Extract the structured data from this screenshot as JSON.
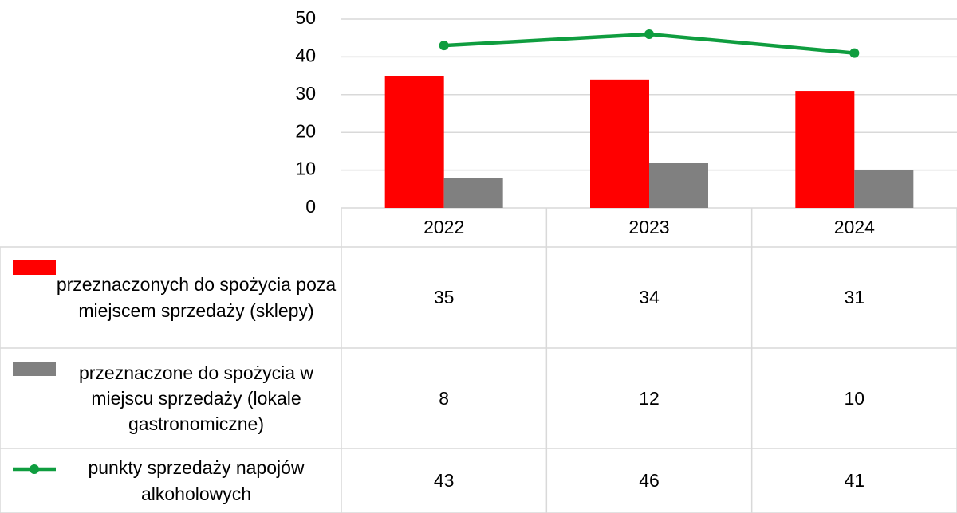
{
  "chart_data": {
    "type": "bar",
    "categories": [
      "2022",
      "2023",
      "2024"
    ],
    "series": [
      {
        "name": "przeznaczonych do spożycia poza miejscem sprzedaży (sklepy)",
        "type": "bar",
        "color": "#ff0000",
        "values": [
          35,
          34,
          31
        ]
      },
      {
        "name": "przeznaczone do spożycia w miejscu sprzedaży (lokale gastronomiczne)",
        "type": "bar",
        "color": "#808080",
        "values": [
          8,
          12,
          10
        ]
      },
      {
        "name": "punkty sprzedaży napojów alkoholowych",
        "type": "line",
        "color": "#0f9d3f",
        "values": [
          43,
          46,
          41
        ]
      }
    ],
    "ylim": [
      0,
      50
    ],
    "yticks": [
      0,
      10,
      20,
      30,
      40,
      50
    ],
    "grid": true
  }
}
